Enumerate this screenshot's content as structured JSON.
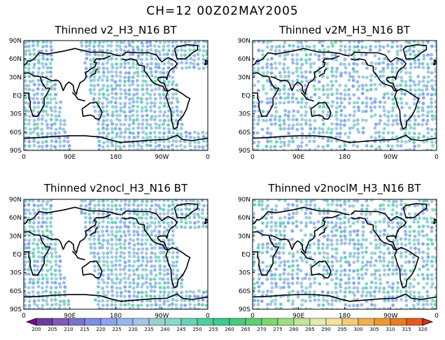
{
  "main_title": "CH=12   00Z02MAY2005",
  "panels": [
    {
      "title": "Thinned v2_H3_N16 BT",
      "gap": [
        true,
        true
      ]
    },
    {
      "title": "Thinned v2M_H3_N16 BT",
      "gap": [
        false,
        false
      ]
    },
    {
      "title": "Thinned v2nocl_H3_N16 BT",
      "gap": [
        true,
        true
      ]
    },
    {
      "title": "Thinned v2noclM_H3_N16 BT",
      "gap": [
        false,
        false
      ]
    }
  ],
  "lat_labels": [
    "90N",
    "60N",
    "30N",
    "EQ",
    "30S",
    "60S",
    "90S"
  ],
  "lon_labels": [
    "0",
    "90E",
    "180",
    "90W",
    "0"
  ],
  "colorbar": {
    "labels": [
      "200",
      "205",
      "210",
      "215",
      "220",
      "225",
      "230",
      "235",
      "240",
      "245",
      "250",
      "255",
      "260",
      "265",
      "270",
      "275",
      "280",
      "285",
      "290",
      "295",
      "300",
      "305",
      "310",
      "315",
      "320"
    ],
    "colors": [
      "#7a0f85",
      "#6e3c98",
      "#7c5bbb",
      "#7a74c9",
      "#7f8de6",
      "#89a4f0",
      "#97b8ec",
      "#a3c6e2",
      "#98d3d2",
      "#86dbc8",
      "#69d3b3",
      "#4fcf9e",
      "#3dcb8e",
      "#46cc7f",
      "#5cd172",
      "#7cd771",
      "#9ee07e",
      "#c0e79a",
      "#e3eab1",
      "#f3e3a2",
      "#f5cc76",
      "#f1b14d",
      "#ed9a2d",
      "#e87e1d",
      "#e35c1c",
      "#d82f18"
    ]
  }
}
